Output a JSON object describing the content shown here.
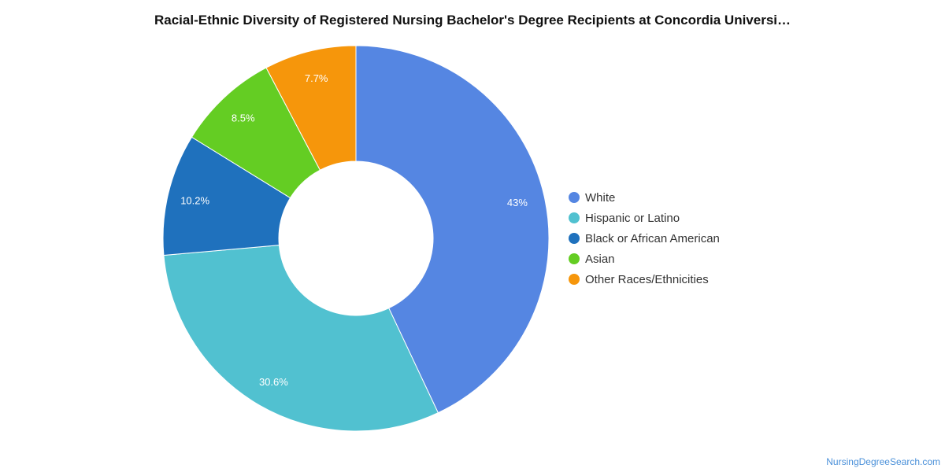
{
  "title": "Racial-Ethnic Diversity of Registered Nursing Bachelor's Degree Recipients at Concordia Universi…",
  "source": "NursingDegreeSearch.com",
  "chart_data": {
    "type": "pie",
    "donut": true,
    "title": "Racial-Ethnic Diversity of Registered Nursing Bachelor's Degree Recipients at Concordia Universi…",
    "legend_position": "right",
    "categories": [
      "White",
      "Hispanic or Latino",
      "Black or African American",
      "Asian",
      "Other Races/Ethnicities"
    ],
    "values": [
      43,
      30.6,
      10.2,
      8.5,
      7.7
    ],
    "labels": [
      "43%",
      "30.6%",
      "10.2%",
      "8.5%",
      "7.7%"
    ],
    "colors": [
      "#5586e2",
      "#51c1d0",
      "#1f71bd",
      "#64cd23",
      "#f6960b"
    ]
  }
}
